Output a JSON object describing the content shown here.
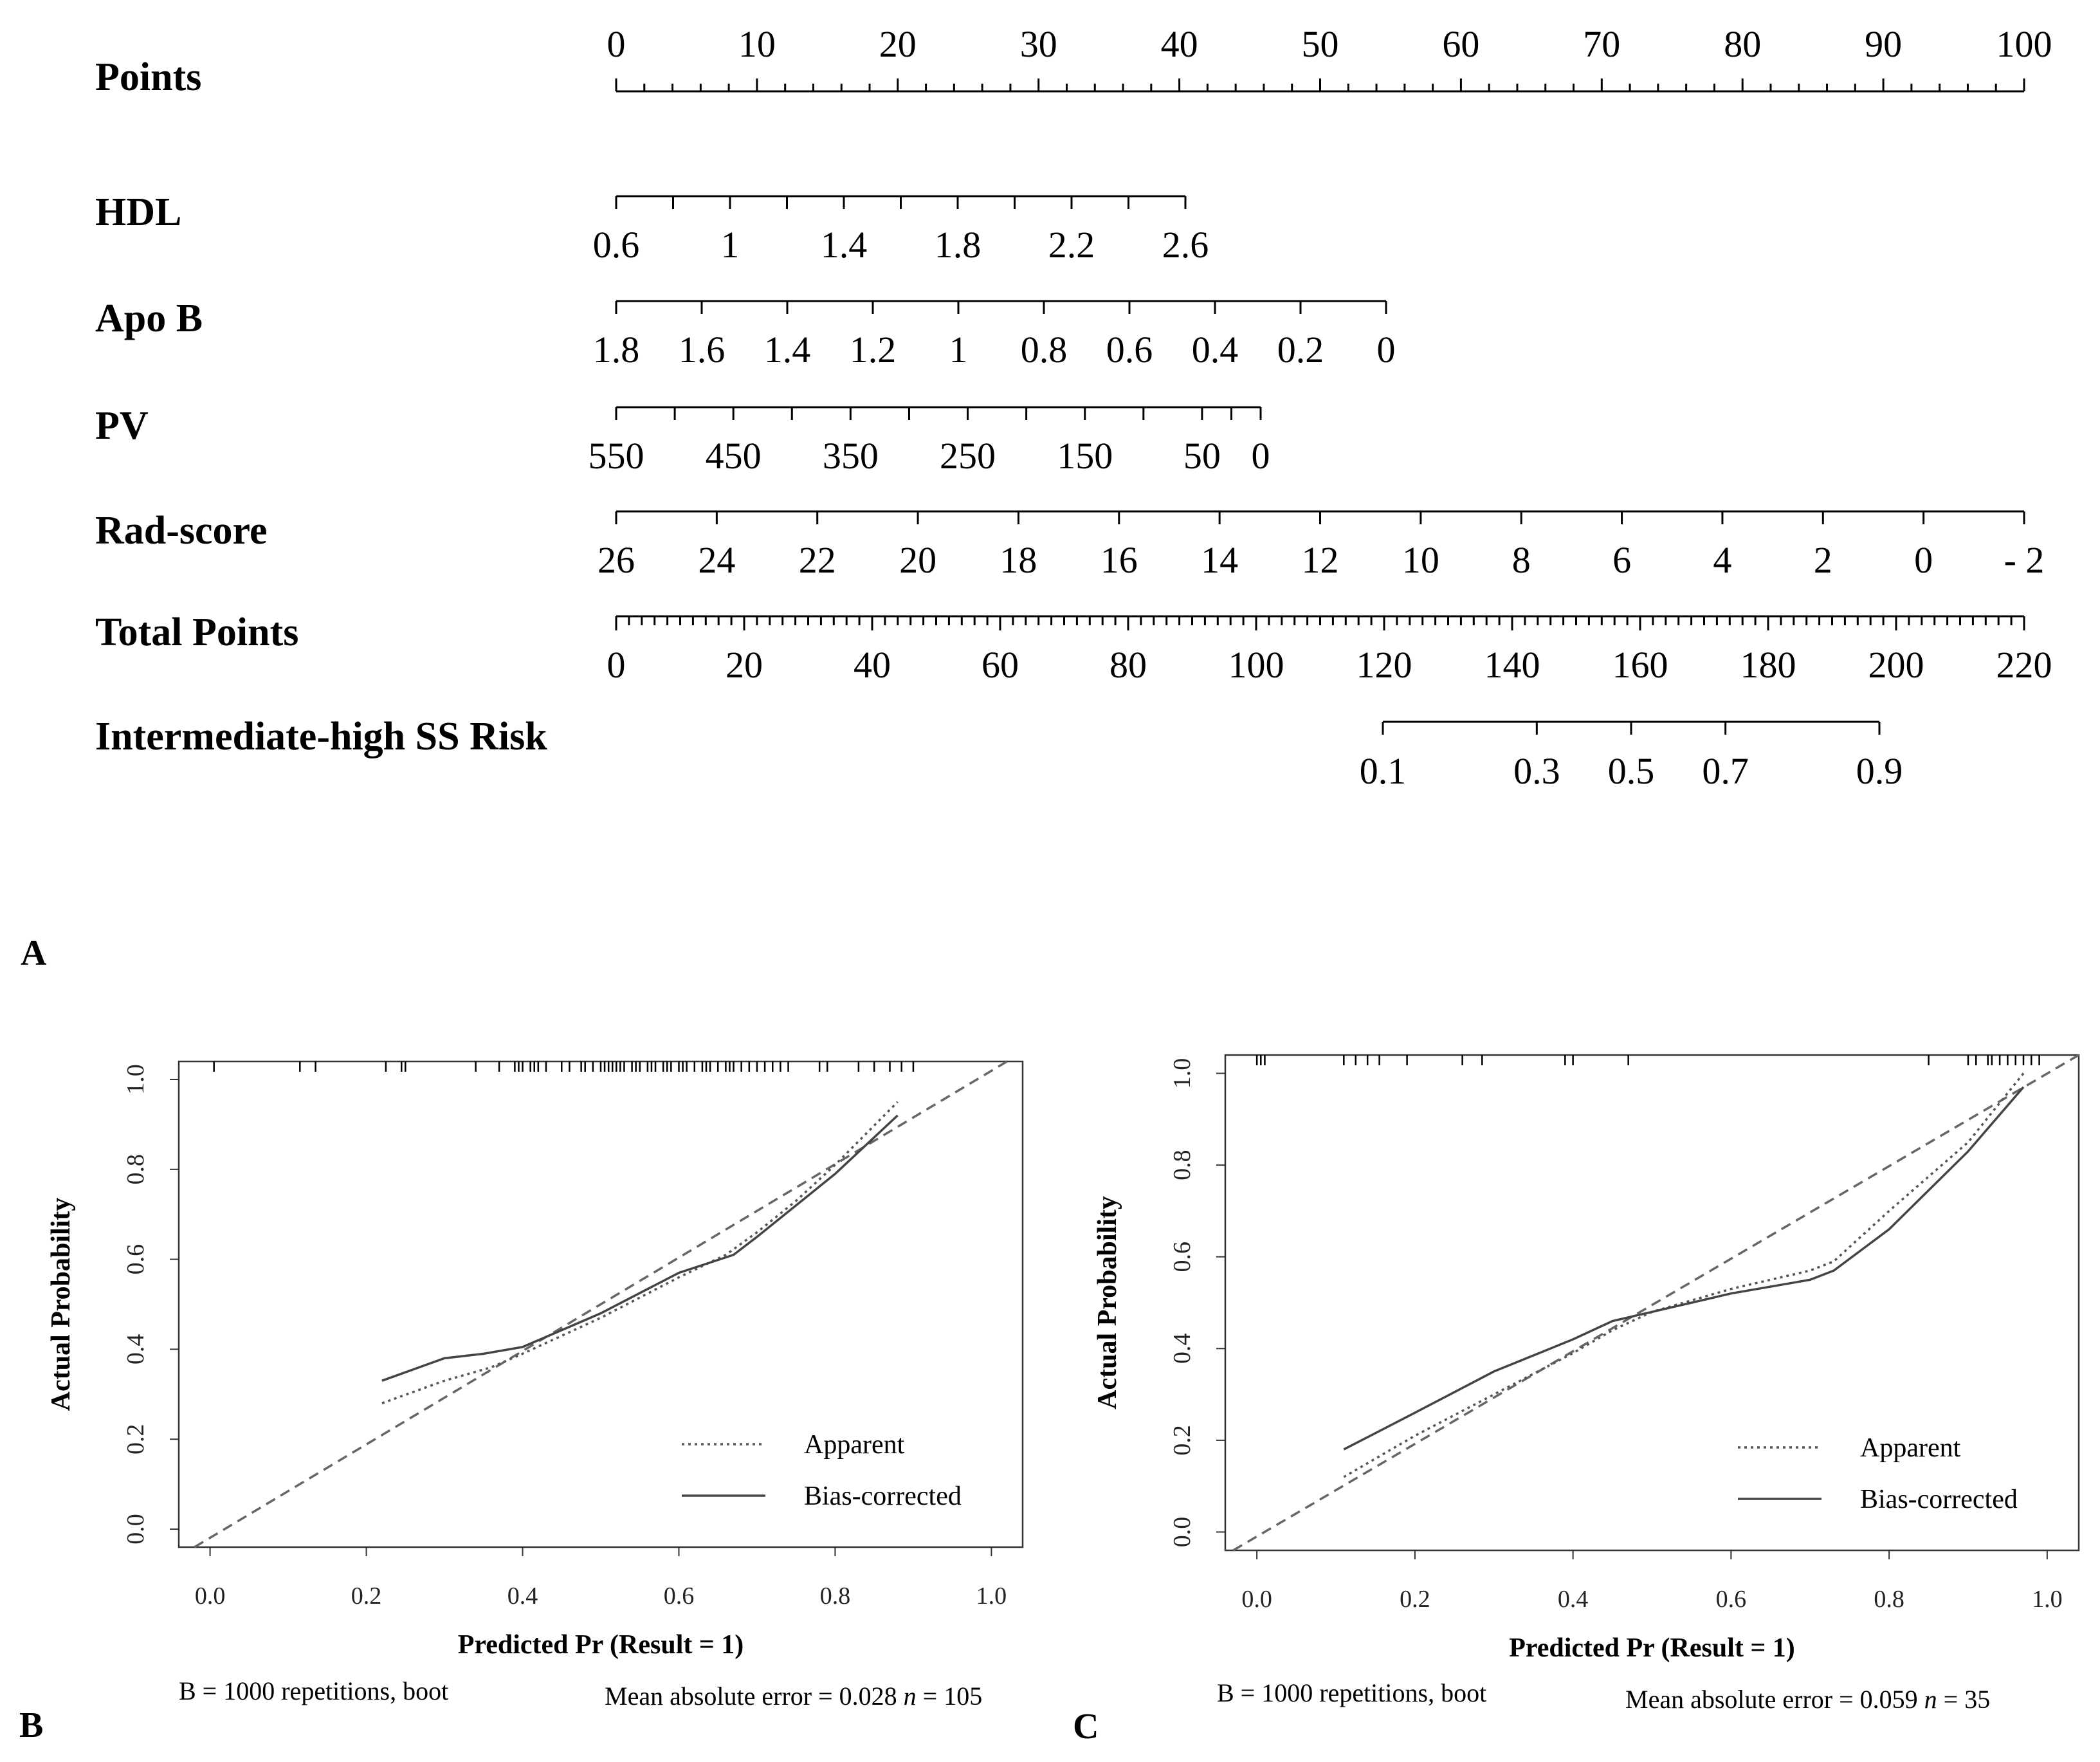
{
  "chart_data": [
    {
      "type": "nomogram",
      "panel": "A",
      "rows": [
        {
          "name": "Points",
          "labels": [
            "0",
            "10",
            "20",
            "30",
            "40",
            "50",
            "60",
            "70",
            "80",
            "90",
            "100"
          ]
        },
        {
          "name": "HDL",
          "labels": [
            "0.6",
            "1",
            "1.4",
            "1.8",
            "2.2",
            "2.6"
          ]
        },
        {
          "name": "Apo B",
          "labels": [
            "1.8",
            "1.6",
            "1.4",
            "1.2",
            "1",
            "0.8",
            "0.6",
            "0.4",
            "0.2",
            "0"
          ]
        },
        {
          "name": "PV",
          "labels": [
            "550",
            "450",
            "350",
            "250",
            "150",
            "50",
            "0"
          ]
        },
        {
          "name": "Rad-score",
          "labels": [
            "26",
            "24",
            "22",
            "20",
            "18",
            "16",
            "14",
            "12",
            "10",
            "8",
            "6",
            "4",
            "2",
            "0",
            "- 2"
          ]
        },
        {
          "name": "Total Points",
          "labels": [
            "0",
            "20",
            "40",
            "60",
            "80",
            "100",
            "120",
            "140",
            "160",
            "180",
            "200",
            "220"
          ]
        },
        {
          "name": "Intermediate-high SS Risk",
          "labels": [
            "0.1",
            "0.3",
            "0.5",
            "0.7",
            "0.9"
          ]
        }
      ]
    },
    {
      "type": "line",
      "panel": "B",
      "xlabel": "Predicted Pr (Result = 1)",
      "ylabel": "Actual Probability",
      "xlim": [
        0,
        1
      ],
      "ylim": [
        0,
        1
      ],
      "xticks": [
        "0.0",
        "0.2",
        "0.4",
        "0.6",
        "0.8",
        "1.0"
      ],
      "yticks": [
        "0.0",
        "0.2",
        "0.4",
        "0.6",
        "0.8",
        "1.0"
      ],
      "legend": [
        "Apparent",
        "Bias-corrected"
      ],
      "series": [
        {
          "name": "Ideal",
          "x": [
            -0.02,
            1.02
          ],
          "y": [
            -0.04,
            1.04
          ]
        },
        {
          "name": "Apparent",
          "x": [
            0.22,
            0.3,
            0.36,
            0.4,
            0.5,
            0.6,
            0.66,
            0.7,
            0.75,
            0.8,
            0.88
          ],
          "y": [
            0.28,
            0.33,
            0.36,
            0.39,
            0.47,
            0.56,
            0.61,
            0.66,
            0.73,
            0.81,
            0.95
          ]
        },
        {
          "name": "Bias-corrected",
          "x": [
            0.22,
            0.3,
            0.35,
            0.4,
            0.5,
            0.6,
            0.67,
            0.7,
            0.75,
            0.8,
            0.88
          ],
          "y": [
            0.33,
            0.38,
            0.39,
            0.405,
            0.48,
            0.57,
            0.61,
            0.65,
            0.72,
            0.79,
            0.92
          ]
        }
      ],
      "rug": [
        0.005,
        0.115,
        0.135,
        0.225,
        0.245,
        0.25,
        0.34,
        0.37,
        0.39,
        0.395,
        0.4,
        0.41,
        0.415,
        0.42,
        0.43,
        0.45,
        0.46,
        0.475,
        0.48,
        0.49,
        0.5,
        0.505,
        0.51,
        0.515,
        0.52,
        0.525,
        0.53,
        0.54,
        0.545,
        0.55,
        0.56,
        0.565,
        0.57,
        0.58,
        0.585,
        0.59,
        0.6,
        0.605,
        0.61,
        0.62,
        0.63,
        0.635,
        0.64,
        0.65,
        0.66,
        0.665,
        0.67,
        0.68,
        0.69,
        0.7,
        0.71,
        0.72,
        0.73,
        0.74,
        0.78,
        0.79,
        0.83,
        0.85,
        0.87,
        0.885,
        0.9
      ],
      "footer_left": "B = 1000 repetitions, boot",
      "footer_right_pre": "Mean absolute error = 0.028",
      "footer_n": "n",
      "footer_right_post": " = 105"
    },
    {
      "type": "line",
      "panel": "C",
      "xlabel": "Predicted Pr (Result = 1)",
      "ylabel": "Actual Probability",
      "xlim": [
        0,
        1
      ],
      "ylim": [
        0,
        1
      ],
      "xticks": [
        "0.0",
        "0.2",
        "0.4",
        "0.6",
        "0.8",
        "1.0"
      ],
      "yticks": [
        "0.0",
        "0.2",
        "0.4",
        "0.6",
        "0.8",
        "1.0"
      ],
      "legend": [
        "Apparent",
        "Bias-corrected"
      ],
      "series": [
        {
          "name": "Ideal",
          "x": [
            -0.03,
            1.04
          ],
          "y": [
            -0.04,
            1.04
          ]
        },
        {
          "name": "Apparent",
          "x": [
            0.11,
            0.2,
            0.3,
            0.4,
            0.45,
            0.5,
            0.6,
            0.7,
            0.73,
            0.8,
            0.9,
            0.97
          ],
          "y": [
            0.12,
            0.21,
            0.3,
            0.39,
            0.44,
            0.48,
            0.53,
            0.57,
            0.59,
            0.7,
            0.85,
            1.0
          ]
        },
        {
          "name": "Bias-corrected",
          "x": [
            0.11,
            0.2,
            0.3,
            0.4,
            0.45,
            0.5,
            0.6,
            0.7,
            0.73,
            0.8,
            0.9,
            0.97
          ],
          "y": [
            0.18,
            0.26,
            0.35,
            0.42,
            0.46,
            0.48,
            0.52,
            0.55,
            0.57,
            0.66,
            0.83,
            0.97
          ]
        }
      ],
      "rug": [
        0.0,
        0.005,
        0.01,
        0.11,
        0.125,
        0.14,
        0.155,
        0.19,
        0.26,
        0.285,
        0.39,
        0.4,
        0.47,
        0.85,
        0.9,
        0.91,
        0.925,
        0.93,
        0.94,
        0.95,
        0.96,
        0.97,
        0.98,
        0.99
      ],
      "footer_left": "B = 1000 repetitions, boot",
      "footer_right_pre": "Mean absolute error = 0.059",
      "footer_n": "n",
      "footer_right_post": " = 35"
    }
  ]
}
